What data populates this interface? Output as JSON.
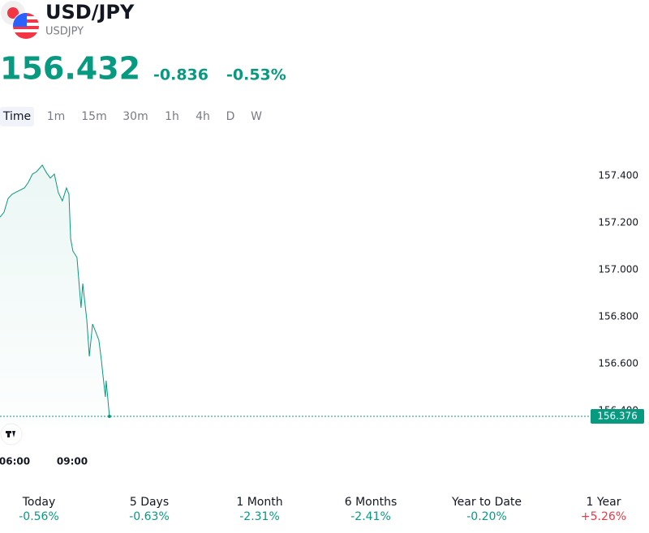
{
  "header": {
    "symbol": "USD/JPY",
    "ticker": "USDJPY",
    "price": "156.432",
    "change": "-0.836",
    "change_percent": "-0.53%",
    "color": "#089981"
  },
  "intervals": [
    "Time",
    "1m",
    "15m",
    "30m",
    "1h",
    "4h",
    "D",
    "W"
  ],
  "chart_data": {
    "type": "line",
    "color": "#089981",
    "x": [
      5.24,
      5.45,
      5.66,
      5.87,
      6.17,
      6.51,
      6.72,
      6.93,
      7.14,
      7.44,
      7.65,
      7.86,
      8.07,
      8.28,
      8.49,
      8.7,
      8.83,
      8.92,
      9.04,
      9.25,
      9.46,
      9.55,
      9.76,
      9.89,
      10.06,
      10.23,
      10.39,
      10.52,
      10.61,
      10.73,
      10.77,
      10.94
    ],
    "values": [
      157.224,
      157.245,
      157.303,
      157.321,
      157.334,
      157.348,
      157.372,
      157.407,
      157.417,
      157.445,
      157.414,
      157.39,
      157.407,
      157.328,
      157.293,
      157.348,
      157.321,
      157.131,
      157.079,
      157.052,
      156.838,
      156.941,
      156.786,
      156.631,
      156.769,
      156.734,
      156.7,
      156.614,
      156.545,
      156.459,
      156.528,
      156.376
    ],
    "xlim": [
      5.24,
      36.0
    ],
    "xticks": [
      {
        "value": 6,
        "label": "06:00"
      },
      {
        "value": 9,
        "label": "09:00"
      }
    ],
    "ylim": [
      156.338,
      157.51
    ],
    "yticks": [
      {
        "value": 156.4,
        "label": "156.400"
      },
      {
        "value": 156.6,
        "label": "156.600"
      },
      {
        "value": 156.8,
        "label": "156.800"
      },
      {
        "value": 157.0,
        "label": "157.000"
      },
      {
        "value": 157.2,
        "label": "157.200"
      },
      {
        "value": 157.4,
        "label": "157.400"
      }
    ],
    "last_value": 156.376
  },
  "performance": [
    {
      "period": "Today",
      "change": "-0.56%",
      "color": "#089981"
    },
    {
      "period": "5 Days",
      "change": "-0.63%",
      "color": "#089981"
    },
    {
      "period": "1 Month",
      "change": "-2.31%",
      "color": "#089981"
    },
    {
      "period": "6 Months",
      "change": "-2.41%",
      "color": "#089981"
    },
    {
      "period": "Year to Date",
      "change": "-0.20%",
      "color": "#089981"
    },
    {
      "period": "1 Year",
      "change": "+5.26%",
      "color": "#f23645"
    }
  ]
}
